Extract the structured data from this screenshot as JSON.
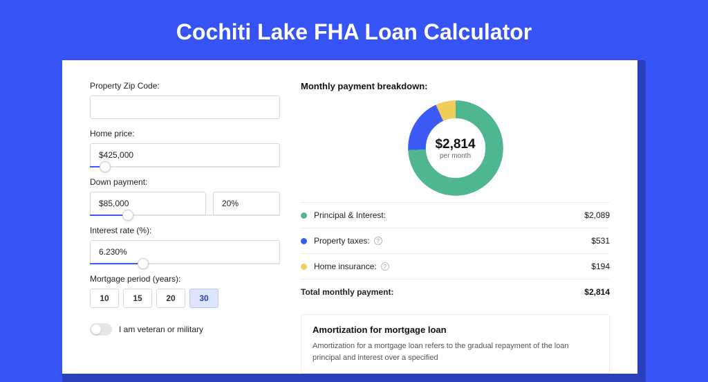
{
  "title": "Cochiti Lake FHA Loan Calculator",
  "colors": {
    "page_bg": "#3654f5",
    "panel_shadow": "#2a3fbb",
    "slider_fill": "#3c5bf6"
  },
  "form": {
    "zip": {
      "label": "Property Zip Code:",
      "value": ""
    },
    "home_price": {
      "label": "Home price:",
      "value": "$425,000",
      "slider_pct": 8
    },
    "down_payment": {
      "label": "Down payment:",
      "amount": "$85,000",
      "percent": "20%",
      "slider_pct": 20
    },
    "interest_rate": {
      "label": "Interest rate (%):",
      "value": "6.230%",
      "slider_pct": 28
    },
    "mortgage_period": {
      "label": "Mortgage period (years):",
      "options": [
        "10",
        "15",
        "20",
        "30"
      ],
      "selected": "30"
    },
    "veteran": {
      "label": "I am veteran or military",
      "checked": false
    }
  },
  "breakdown": {
    "title": "Monthly payment breakdown:",
    "center_amount": "$2,814",
    "center_sub": "per month",
    "donut": {
      "slices": [
        {
          "key": "pi",
          "color": "#4fb78f",
          "fraction": 0.742
        },
        {
          "key": "tax",
          "color": "#3c5bf6",
          "fraction": 0.189
        },
        {
          "key": "ins",
          "color": "#f0ce5b",
          "fraction": 0.069
        }
      ],
      "ring_width": 22
    },
    "rows": [
      {
        "label": "Principal & Interest:",
        "value": "$2,089",
        "color": "#4fb78f",
        "info": false
      },
      {
        "label": "Property taxes:",
        "value": "$531",
        "color": "#3c5bf6",
        "info": true
      },
      {
        "label": "Home insurance:",
        "value": "$194",
        "color": "#f0ce5b",
        "info": true
      }
    ],
    "total": {
      "label": "Total monthly payment:",
      "value": "$2,814"
    }
  },
  "amortization": {
    "title": "Amortization for mortgage loan",
    "text": "Amortization for a mortgage loan refers to the gradual repayment of the loan principal and interest over a specified"
  }
}
